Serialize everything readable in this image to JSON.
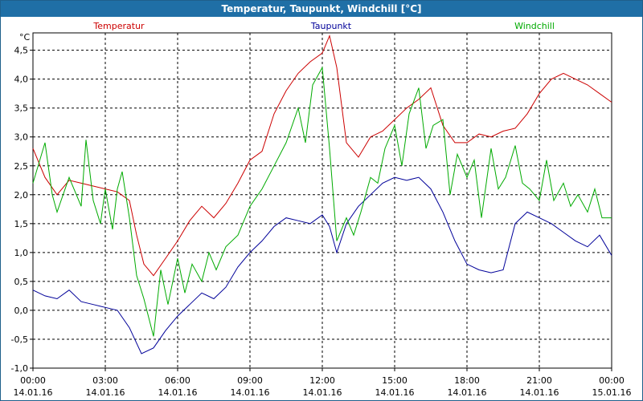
{
  "window": {
    "title": "Temperatur, Taupunkt, Windchill [°C]"
  },
  "chart_data": {
    "type": "line",
    "title": "Temperatur, Taupunkt, Windchill [°C]",
    "ylabel": "°C",
    "xlabel": "",
    "ylim": [
      -1.0,
      4.8
    ],
    "xlim": [
      0,
      24
    ],
    "grid": true,
    "legend_placement": "top",
    "y_ticks": [
      "4,5",
      "4,0",
      "3,5",
      "3,0",
      "2,5",
      "2,0",
      "1,5",
      "1,0",
      "0,5",
      "0,0",
      "-0,5",
      "-1,0"
    ],
    "y_tick_values": [
      4.5,
      4.0,
      3.5,
      3.0,
      2.5,
      2.0,
      1.5,
      1.0,
      0.5,
      0.0,
      -0.5,
      -1.0
    ],
    "x_ticks": [
      {
        "hour": 0,
        "time": "00:00",
        "date": "14.01.16"
      },
      {
        "hour": 3,
        "time": "03:00",
        "date": "14.01.16"
      },
      {
        "hour": 6,
        "time": "06:00",
        "date": "14.01.16"
      },
      {
        "hour": 9,
        "time": "09:00",
        "date": "14.01.16"
      },
      {
        "hour": 12,
        "time": "12:00",
        "date": "14.01.16"
      },
      {
        "hour": 15,
        "time": "15:00",
        "date": "14.01.16"
      },
      {
        "hour": 18,
        "time": "18:00",
        "date": "14.01.16"
      },
      {
        "hour": 21,
        "time": "21:00",
        "date": "14.01.16"
      },
      {
        "hour": 24,
        "time": "00:00",
        "date": "15.01.16"
      }
    ],
    "series": [
      {
        "name": "Temperatur",
        "color": "#cc0000",
        "x": [
          0,
          0.5,
          1.0,
          1.5,
          2.0,
          2.5,
          3.0,
          3.5,
          4.0,
          4.3,
          4.6,
          5.0,
          5.5,
          6.0,
          6.5,
          7.0,
          7.5,
          8.0,
          8.5,
          9.0,
          9.5,
          10.0,
          10.5,
          11.0,
          11.5,
          12.0,
          12.3,
          12.6,
          13.0,
          13.5,
          14.0,
          14.5,
          15.0,
          15.5,
          16.0,
          16.5,
          17.0,
          17.5,
          18.0,
          18.5,
          19.0,
          19.5,
          20.0,
          20.5,
          21.0,
          21.5,
          22.0,
          22.5,
          23.0,
          23.5,
          24.0
        ],
        "values": [
          2.8,
          2.3,
          2.0,
          2.25,
          2.2,
          2.15,
          2.1,
          2.05,
          1.9,
          1.3,
          0.8,
          0.6,
          0.9,
          1.2,
          1.55,
          1.8,
          1.6,
          1.85,
          2.2,
          2.6,
          2.75,
          3.4,
          3.8,
          4.1,
          4.3,
          4.45,
          4.75,
          4.2,
          2.9,
          2.65,
          3.0,
          3.1,
          3.3,
          3.5,
          3.65,
          3.85,
          3.2,
          2.9,
          2.9,
          3.05,
          3.0,
          3.1,
          3.15,
          3.4,
          3.75,
          4.0,
          4.1,
          4.0,
          3.9,
          3.75,
          3.6
        ]
      },
      {
        "name": "Taupunkt",
        "color": "#000099",
        "x": [
          0,
          0.5,
          1.0,
          1.5,
          2.0,
          2.5,
          3.0,
          3.5,
          4.0,
          4.5,
          5.0,
          5.5,
          6.0,
          6.5,
          7.0,
          7.5,
          8.0,
          8.5,
          9.0,
          9.5,
          10.0,
          10.5,
          11.0,
          11.5,
          12.0,
          12.3,
          12.6,
          13.0,
          13.5,
          14.0,
          14.5,
          15.0,
          15.5,
          16.0,
          16.5,
          17.0,
          17.5,
          18.0,
          18.5,
          19.0,
          19.5,
          20.0,
          20.5,
          21.0,
          21.5,
          22.0,
          22.5,
          23.0,
          23.5,
          24.0
        ],
        "values": [
          0.35,
          0.25,
          0.2,
          0.35,
          0.15,
          0.1,
          0.05,
          0.0,
          -0.3,
          -0.75,
          -0.65,
          -0.35,
          -0.1,
          0.1,
          0.3,
          0.2,
          0.4,
          0.75,
          1.0,
          1.2,
          1.45,
          1.6,
          1.55,
          1.5,
          1.65,
          1.45,
          1.0,
          1.5,
          1.8,
          2.0,
          2.2,
          2.3,
          2.25,
          2.3,
          2.1,
          1.7,
          1.2,
          0.8,
          0.7,
          0.65,
          0.7,
          1.5,
          1.7,
          1.6,
          1.5,
          1.35,
          1.2,
          1.1,
          1.3,
          0.95
        ]
      },
      {
        "name": "Windchill",
        "color": "#00aa00",
        "x": [
          0,
          0.5,
          0.8,
          1.0,
          1.5,
          2.0,
          2.2,
          2.5,
          2.8,
          3.0,
          3.3,
          3.5,
          3.7,
          4.0,
          4.3,
          4.6,
          5.0,
          5.3,
          5.6,
          6.0,
          6.3,
          6.6,
          7.0,
          7.3,
          7.6,
          8.0,
          8.5,
          9.0,
          9.5,
          10.0,
          10.5,
          11.0,
          11.3,
          11.6,
          12.0,
          12.3,
          12.6,
          13.0,
          13.3,
          13.6,
          14.0,
          14.3,
          14.6,
          15.0,
          15.3,
          15.6,
          16.0,
          16.3,
          16.6,
          17.0,
          17.3,
          17.6,
          18.0,
          18.3,
          18.6,
          19.0,
          19.3,
          19.6,
          20.0,
          20.3,
          20.6,
          21.0,
          21.3,
          21.6,
          22.0,
          22.3,
          22.6,
          23.0,
          23.3,
          23.6,
          24.0
        ],
        "values": [
          2.2,
          2.9,
          2.0,
          1.7,
          2.3,
          1.8,
          2.95,
          1.9,
          1.5,
          2.1,
          1.4,
          2.1,
          2.4,
          1.6,
          0.6,
          0.2,
          -0.45,
          0.7,
          0.1,
          0.9,
          0.3,
          0.8,
          0.5,
          1.0,
          0.7,
          1.1,
          1.3,
          1.8,
          2.1,
          2.5,
          2.9,
          3.5,
          2.9,
          3.9,
          4.2,
          2.8,
          1.2,
          1.6,
          1.3,
          1.7,
          2.3,
          2.2,
          2.8,
          3.2,
          2.5,
          3.4,
          3.85,
          2.8,
          3.2,
          3.3,
          2.0,
          2.7,
          2.3,
          2.6,
          1.6,
          2.8,
          2.1,
          2.3,
          2.85,
          2.2,
          2.1,
          1.9,
          2.6,
          1.9,
          2.2,
          1.8,
          2.0,
          1.7,
          2.1,
          1.6,
          1.6
        ]
      }
    ]
  }
}
